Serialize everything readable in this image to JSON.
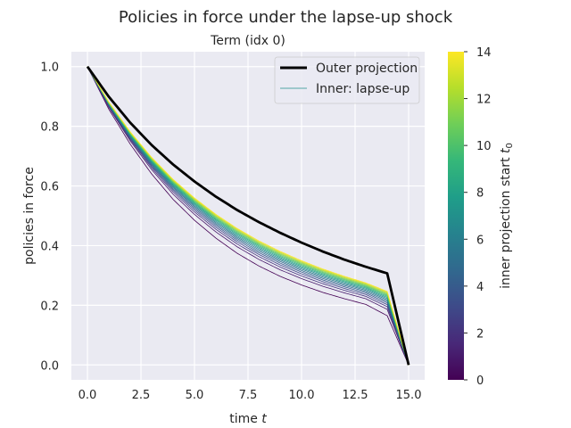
{
  "chart_data": {
    "type": "line",
    "title": "Policies in force under the lapse-up shock",
    "subtitle": "Term (idx 0)",
    "xlabel": "time t",
    "ylabel": "policies in force",
    "xlim": [
      -0.75,
      15.75
    ],
    "ylim": [
      -0.05,
      1.05
    ],
    "xticks": [
      "0.0",
      "2.5",
      "5.0",
      "7.5",
      "10.0",
      "12.5",
      "15.0"
    ],
    "yticks": [
      "0.0",
      "0.2",
      "0.4",
      "0.6",
      "0.8",
      "1.0"
    ],
    "grid": true,
    "legend_placement": "top-right",
    "legend": [
      "Outer projection",
      "Inner: lapse-up"
    ],
    "colorbar": {
      "label": "inner projection start t0",
      "range": [
        0,
        14
      ],
      "ticks": [
        "0",
        "2",
        "4",
        "6",
        "8",
        "10",
        "12",
        "14"
      ],
      "colormap": "viridis"
    },
    "series": [
      {
        "name": "Outer projection",
        "color": "#000000",
        "x": [
          0,
          1,
          2,
          3,
          4,
          5,
          6,
          7,
          8,
          9,
          10,
          11,
          12,
          13,
          14,
          15
        ],
        "y": [
          1.0,
          0.899,
          0.812,
          0.737,
          0.672,
          0.615,
          0.564,
          0.519,
          0.479,
          0.443,
          0.41,
          0.38,
          0.353,
          0.329,
          0.307,
          0.0
        ]
      },
      {
        "name": "Inner: lapse-up",
        "start": 0,
        "x": [
          0,
          1,
          2,
          3,
          4,
          5,
          6,
          7,
          8,
          9,
          10,
          11,
          12,
          13,
          14,
          15
        ],
        "y": [
          1.0,
          0.857,
          0.74,
          0.64,
          0.555,
          0.485,
          0.425,
          0.374,
          0.332,
          0.297,
          0.268,
          0.243,
          0.222,
          0.203,
          0.165,
          0.0
        ]
      }
    ]
  }
}
